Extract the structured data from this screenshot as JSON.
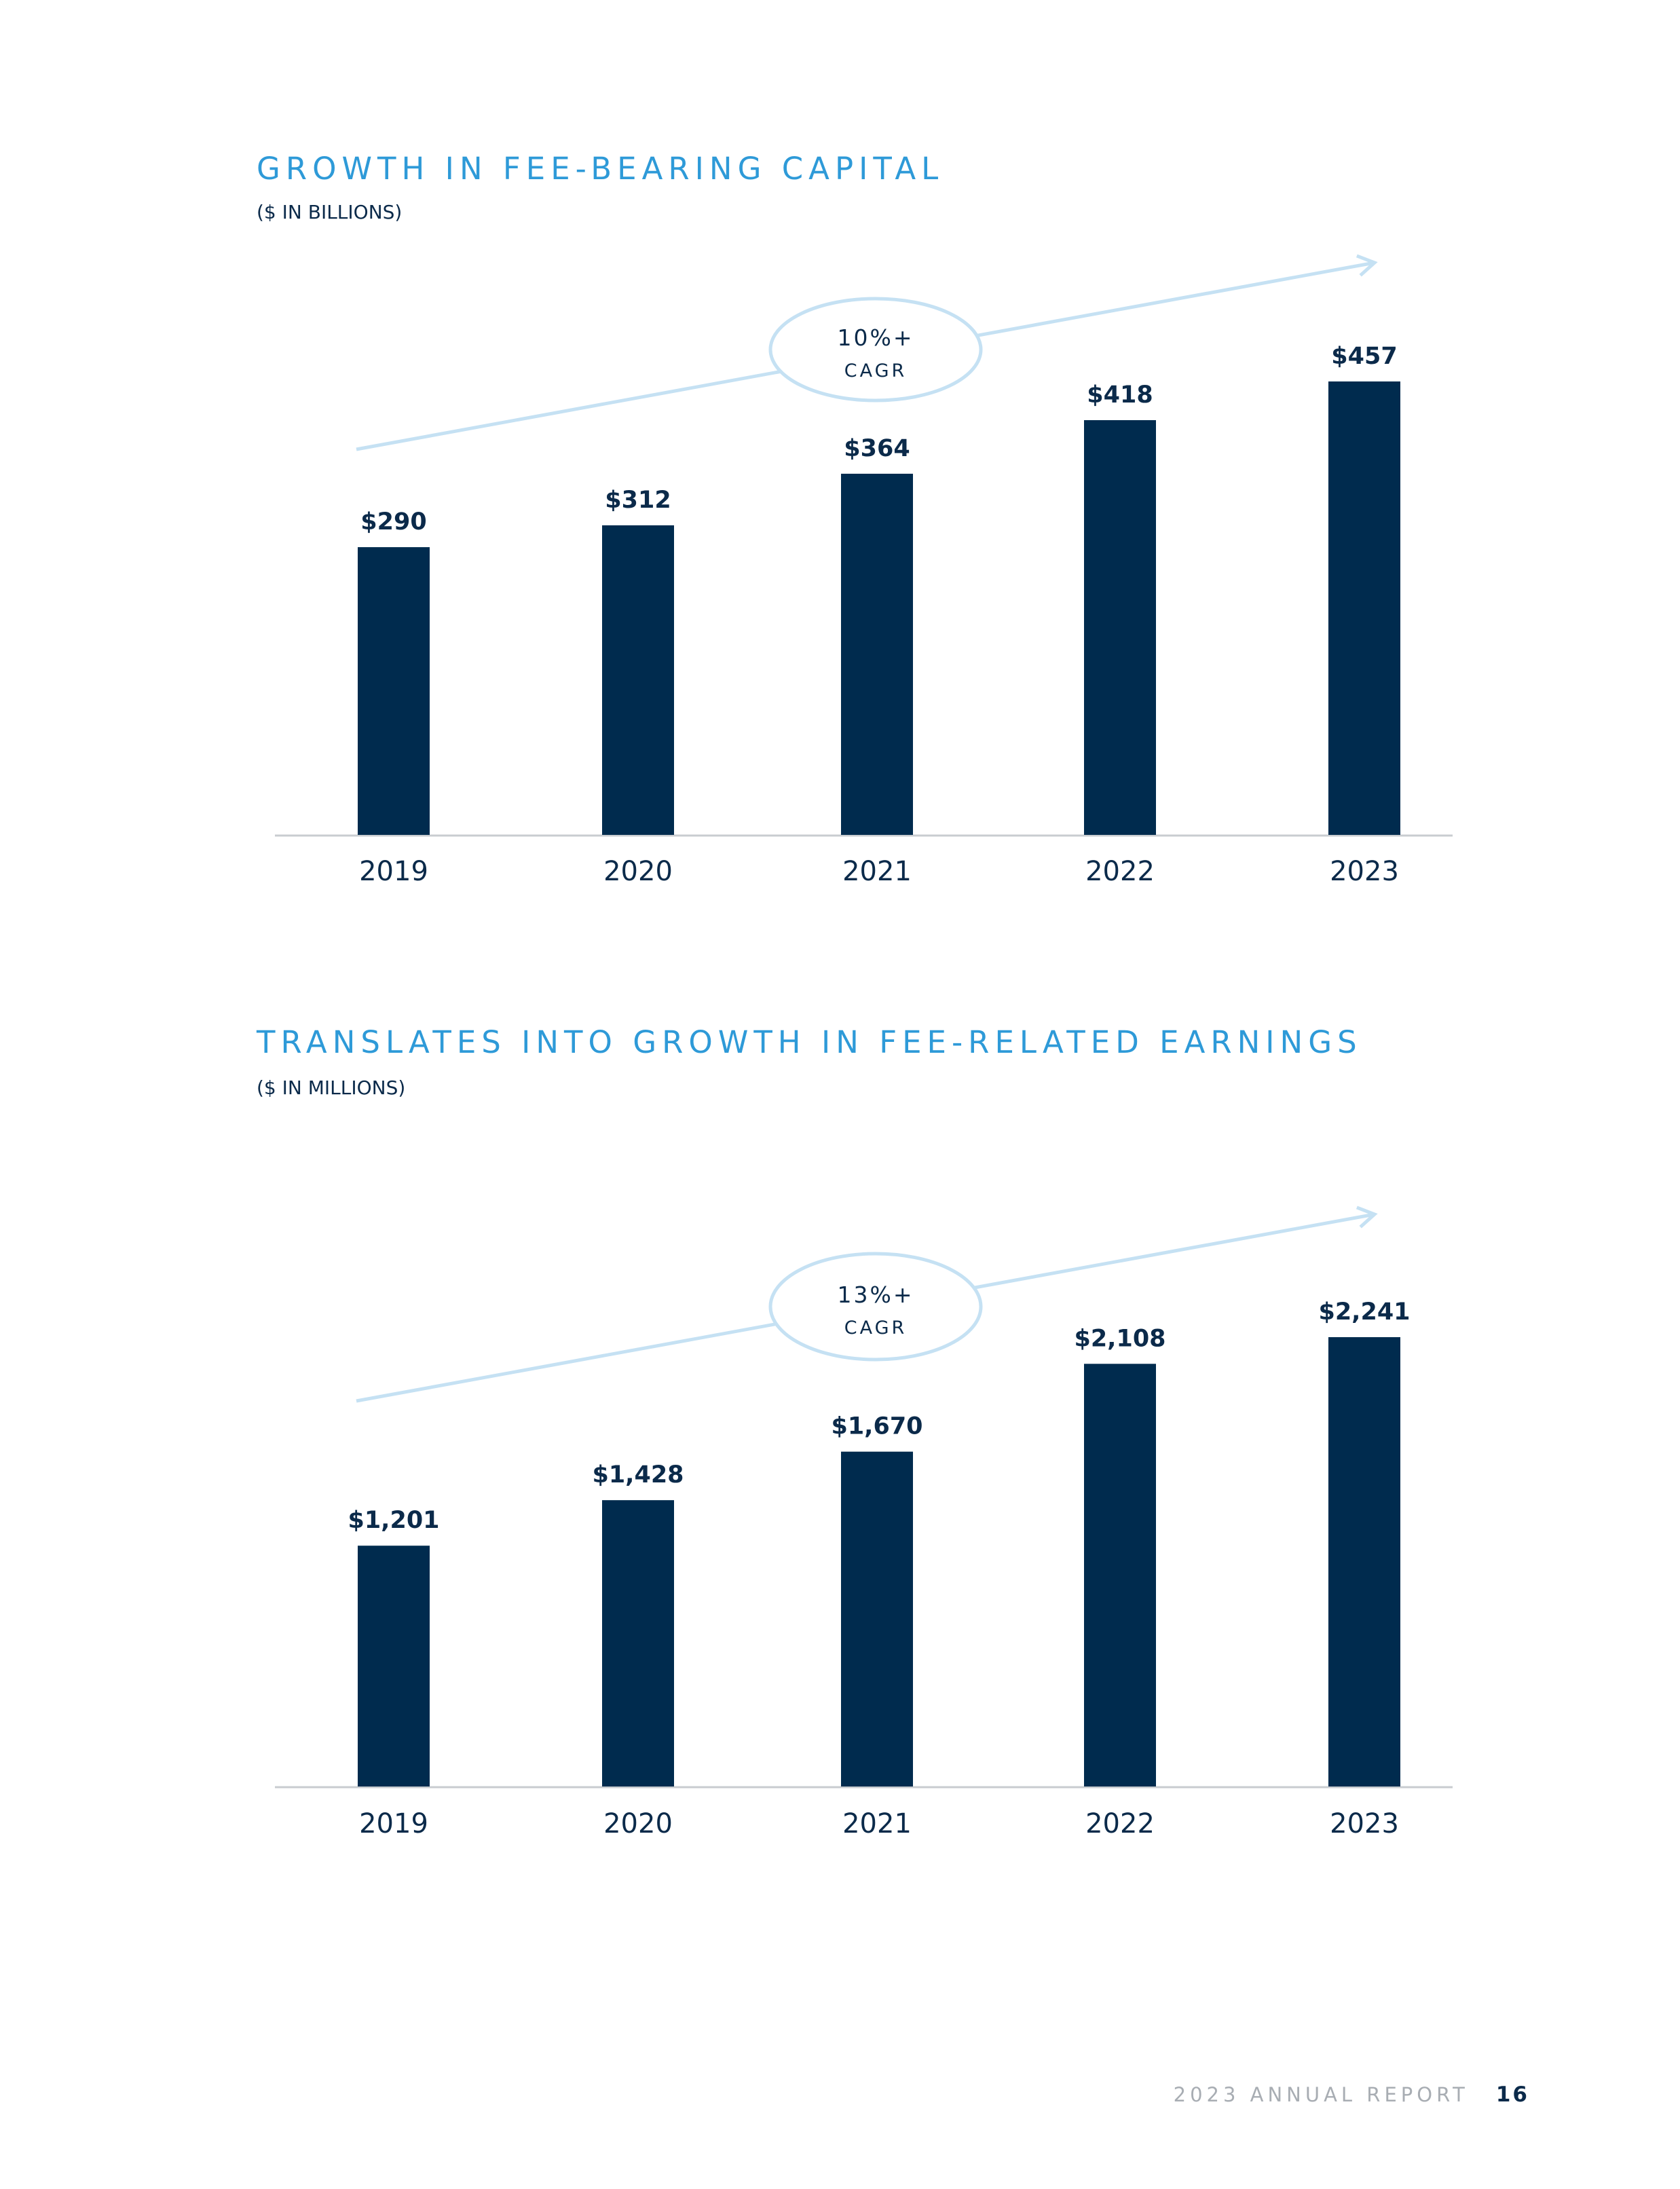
{
  "chart_data": [
    {
      "type": "bar",
      "title": "GROWTH IN FEE-BEARING CAPITAL",
      "subtitle": "($ IN BILLIONS)",
      "categories": [
        "2019",
        "2020",
        "2021",
        "2022",
        "2023"
      ],
      "values": [
        290,
        312,
        364,
        418,
        457
      ],
      "data_labels": [
        "$290",
        "$312",
        "$364",
        "$418",
        "$457"
      ],
      "ylim": [
        0,
        457
      ],
      "grid": false,
      "annotation": {
        "value": "10%+",
        "label": "CAGR"
      },
      "colors": {
        "bar": "#002b4e",
        "title": "#2e9ad8",
        "trend": "#c5e1f3",
        "axis": "#c9ccd0"
      }
    },
    {
      "type": "bar",
      "title": "TRANSLATES INTO GROWTH IN FEE-RELATED EARNINGS",
      "subtitle": "($ IN MILLIONS)",
      "categories": [
        "2019",
        "2020",
        "2021",
        "2022",
        "2023"
      ],
      "values": [
        1201,
        1428,
        1670,
        2108,
        2241
      ],
      "data_labels": [
        "$1,201",
        "$1,428",
        "$1,670",
        "$2,108",
        "$2,241"
      ],
      "ylim": [
        0,
        2241
      ],
      "grid": false,
      "annotation": {
        "value": "13%+",
        "label": "CAGR"
      },
      "colors": {
        "bar": "#002b4e",
        "title": "#2e9ad8",
        "trend": "#c5e1f3",
        "axis": "#c9ccd0"
      }
    }
  ],
  "footer": {
    "label": "2023 ANNUAL REPORT",
    "page": "16"
  }
}
